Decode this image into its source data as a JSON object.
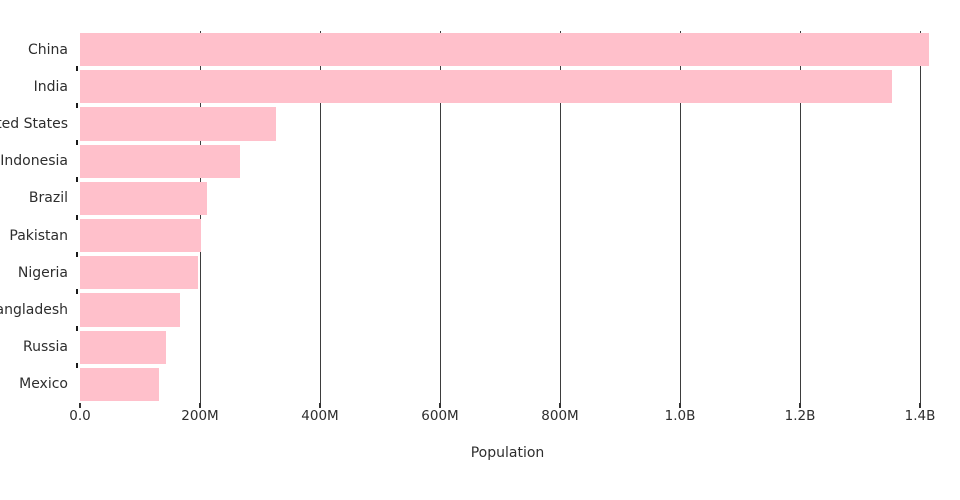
{
  "chart_data": {
    "type": "bar",
    "orientation": "horizontal",
    "title": "",
    "xlabel": "Population",
    "ylabel": "",
    "legend": "none",
    "grid": "vertical-only",
    "categories": [
      "China",
      "India",
      "United States",
      "Indonesia",
      "Brazil",
      "Pakistan",
      "Nigeria",
      "Bangladesh",
      "Russia",
      "Mexico"
    ],
    "values_millions": [
      1415,
      1354,
      327,
      267,
      211,
      201,
      196,
      166,
      144,
      131
    ],
    "xlim_millions": [
      0,
      1425
    ],
    "x_ticks": [
      {
        "value_millions": 0,
        "label": "0.0"
      },
      {
        "value_millions": 200,
        "label": "200M"
      },
      {
        "value_millions": 400,
        "label": "400M"
      },
      {
        "value_millions": 600,
        "label": "600M"
      },
      {
        "value_millions": 800,
        "label": "800M"
      },
      {
        "value_millions": 1000,
        "label": "1.0B"
      },
      {
        "value_millions": 1200,
        "label": "1.2B"
      },
      {
        "value_millions": 1400,
        "label": "1.4B"
      }
    ],
    "colors": {
      "bar": "#ffc0cb",
      "gridline": "#3d3d3d",
      "tick": "#1a1a1a",
      "text": "#2e2e2e",
      "background": "#ffffff"
    }
  }
}
